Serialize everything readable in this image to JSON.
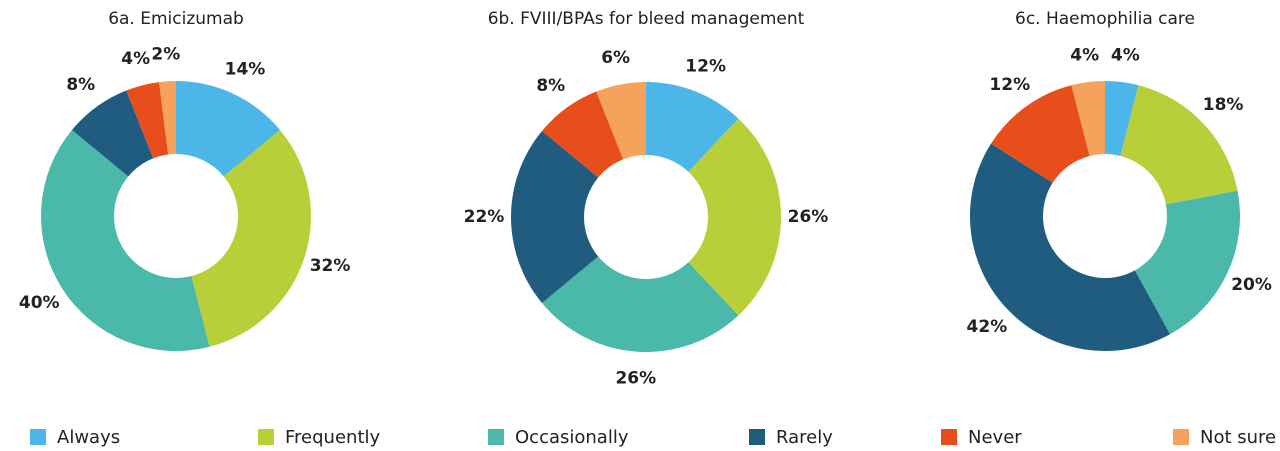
{
  "chart_data": [
    {
      "type": "pie",
      "title": "6a. Emicizumab",
      "categories": [
        "Always",
        "Frequently",
        "Occasionally",
        "Rarely",
        "Never",
        "Not sure"
      ],
      "values": [
        14,
        32,
        40,
        8,
        4,
        2
      ],
      "labels": [
        "14%",
        "32%",
        "40%",
        "8%",
        "4%",
        "2%"
      ]
    },
    {
      "type": "pie",
      "title": "6b. FVIII/BPAs for bleed management",
      "categories": [
        "Always",
        "Frequently",
        "Occasionally",
        "Rarely",
        "Never",
        "Not sure"
      ],
      "values": [
        12,
        26,
        26,
        22,
        8,
        6
      ],
      "labels": [
        "12%",
        "26%",
        "26%",
        "22%",
        "8%",
        "6%"
      ]
    },
    {
      "type": "pie",
      "title": "6c. Haemophilia care",
      "categories": [
        "Always",
        "Frequently",
        "Occasionally",
        "Rarely",
        "Never",
        "Not sure"
      ],
      "values": [
        4,
        18,
        20,
        42,
        12,
        4
      ],
      "labels": [
        "4%",
        "18%",
        "20%",
        "42%",
        "12%",
        "4%"
      ]
    }
  ],
  "legend": {
    "position": "bottom",
    "items": [
      {
        "label": "Always",
        "color": "#4db6e8"
      },
      {
        "label": "Frequently",
        "color": "#b8cf3a"
      },
      {
        "label": "Occasionally",
        "color": "#4bb9a9"
      },
      {
        "label": "Rarely",
        "color": "#1f5c80"
      },
      {
        "label": "Never",
        "color": "#e84e1c"
      },
      {
        "label": "Not sure",
        "color": "#f5a35c"
      }
    ]
  }
}
